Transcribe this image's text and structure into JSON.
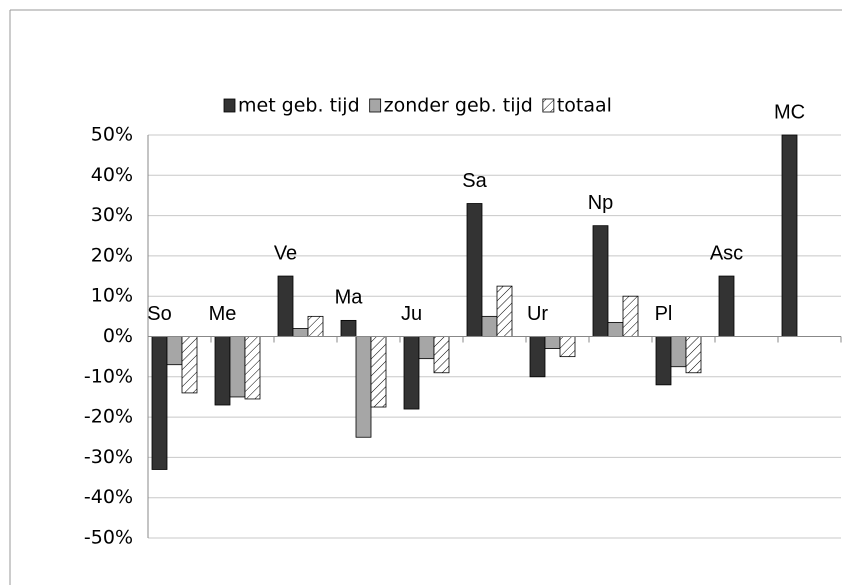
{
  "chart_data": {
    "type": "bar",
    "categories": [
      "So",
      "Me",
      "Ve",
      "Ma",
      "Ju",
      "Sa",
      "Ur",
      "Np",
      "Pl",
      "Asc",
      "MC"
    ],
    "series": [
      {
        "name": "met geb. tijd",
        "color": "#333333",
        "values": [
          -33,
          -17,
          15,
          4,
          -18,
          33,
          -10,
          27.5,
          -12,
          15,
          50
        ]
      },
      {
        "name": "zonder geb. tijd",
        "color": "#a6a6a6",
        "values": [
          -7,
          -15,
          2,
          -25,
          -5.5,
          5,
          -3,
          3.5,
          -7.5,
          null,
          null
        ]
      },
      {
        "name": "totaal",
        "color": "#ffffff",
        "hatch": true,
        "values": [
          -14,
          -15.5,
          5,
          -17.5,
          -9,
          12.5,
          -5,
          10,
          -9,
          null,
          null
        ]
      }
    ],
    "ylim": [
      -50,
      50
    ],
    "yticks": [
      {
        "value": -50,
        "label": "-50%"
      },
      {
        "value": -40,
        "label": "-40%"
      },
      {
        "value": -30,
        "label": "-30%"
      },
      {
        "value": -20,
        "label": "-20%"
      },
      {
        "value": -10,
        "label": "-10%"
      },
      {
        "value": 0,
        "label": "0%"
      },
      {
        "value": 10,
        "label": "10%"
      },
      {
        "value": 20,
        "label": "20%"
      },
      {
        "value": 30,
        "label": "30%"
      },
      {
        "value": 40,
        "label": "40%"
      },
      {
        "value": 50,
        "label": "50%"
      }
    ],
    "grid": true,
    "legend": "top"
  }
}
